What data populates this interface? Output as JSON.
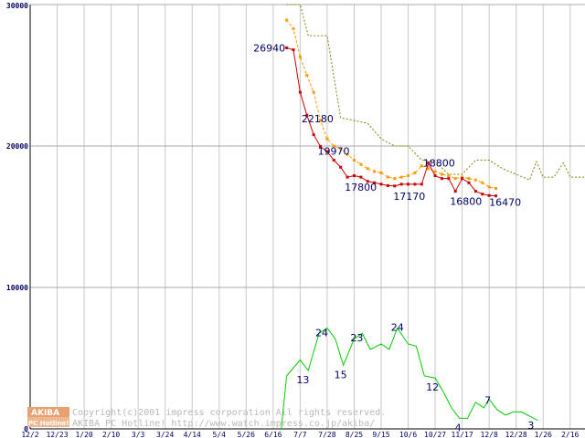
{
  "chart_data": {
    "type": "line",
    "ylim": [
      0,
      30000
    ],
    "y2lim": [
      0,
      40
    ],
    "yticks": [
      "30000",
      "20000",
      "10000",
      "0"
    ],
    "xlabels": [
      "12/2",
      "12/23",
      "1/20",
      "2/10",
      "3/3",
      "3/24",
      "4/14",
      "5/4",
      "5/26",
      "6/16",
      "7/7",
      "7/28",
      "8/25",
      "9/15",
      "10/6",
      "10/27",
      "11/17",
      "12/8",
      "12/28",
      "1/26",
      "2/16"
    ],
    "grid": true,
    "legend": "none",
    "series": [
      {
        "id": "price-max",
        "color": "#808000",
        "style": "dotted",
        "markers": false,
        "points": [
          [
            9.5,
            30000
          ],
          [
            10,
            30000
          ],
          [
            10.3,
            27800
          ],
          [
            11,
            27800
          ],
          [
            11.5,
            22000
          ],
          [
            12,
            21800
          ],
          [
            12.5,
            21600
          ],
          [
            13,
            20500
          ],
          [
            13.5,
            20000
          ],
          [
            14,
            20000
          ],
          [
            14.5,
            19000
          ],
          [
            15,
            18900
          ],
          [
            15.5,
            18000
          ],
          [
            16,
            18000
          ],
          [
            16.5,
            19000
          ],
          [
            17,
            19000
          ],
          [
            17.5,
            18400
          ],
          [
            18,
            18000
          ],
          [
            18.5,
            17600
          ],
          [
            18.75,
            18900
          ],
          [
            19,
            17800
          ],
          [
            19.4,
            17800
          ],
          [
            19.75,
            18800
          ],
          [
            20,
            17800
          ],
          [
            21,
            17800
          ]
        ]
      },
      {
        "id": "price-avg",
        "color": "#ff9900",
        "style": "dashed",
        "markers": true,
        "points": [
          [
            9.5,
            28900
          ],
          [
            9.75,
            28300
          ],
          [
            10,
            26300
          ],
          [
            10.25,
            25000
          ],
          [
            10.5,
            23800
          ],
          [
            10.75,
            21800
          ],
          [
            11,
            20500
          ],
          [
            11.25,
            20000
          ],
          [
            11.5,
            19800
          ],
          [
            11.75,
            19400
          ],
          [
            12,
            19000
          ],
          [
            12.25,
            18700
          ],
          [
            12.5,
            18400
          ],
          [
            12.75,
            18200
          ],
          [
            13,
            18100
          ],
          [
            13.25,
            17800
          ],
          [
            13.5,
            17700
          ],
          [
            13.75,
            17800
          ],
          [
            14,
            17900
          ],
          [
            14.25,
            18100
          ],
          [
            14.5,
            18600
          ],
          [
            14.75,
            18400
          ],
          [
            15,
            18200
          ],
          [
            15.25,
            18000
          ],
          [
            15.5,
            17900
          ],
          [
            15.75,
            17700
          ],
          [
            16,
            17800
          ],
          [
            16.25,
            17700
          ],
          [
            16.5,
            17600
          ],
          [
            16.75,
            17400
          ],
          [
            17,
            17100
          ],
          [
            17.25,
            17000
          ]
        ]
      },
      {
        "id": "price-min",
        "color": "#cc0000",
        "style": "solid",
        "markers": true,
        "points": [
          [
            9.5,
            26940
          ],
          [
            9.75,
            26800
          ],
          [
            10,
            23800
          ],
          [
            10.25,
            22180
          ],
          [
            10.5,
            20800
          ],
          [
            10.75,
            19970
          ],
          [
            11,
            19600
          ],
          [
            11.25,
            19000
          ],
          [
            11.5,
            18500
          ],
          [
            11.75,
            17800
          ],
          [
            12,
            17900
          ],
          [
            12.25,
            17800
          ],
          [
            12.5,
            17500
          ],
          [
            12.75,
            17400
          ],
          [
            13,
            17300
          ],
          [
            13.25,
            17200
          ],
          [
            13.5,
            17170
          ],
          [
            13.75,
            17300
          ],
          [
            14,
            17300
          ],
          [
            14.25,
            17300
          ],
          [
            14.5,
            17300
          ],
          [
            14.75,
            18800
          ],
          [
            15,
            17900
          ],
          [
            15.25,
            17700
          ],
          [
            15.5,
            17700
          ],
          [
            15.75,
            16800
          ],
          [
            16,
            17700
          ],
          [
            16.25,
            17400
          ],
          [
            16.5,
            16800
          ],
          [
            16.75,
            16600
          ],
          [
            17,
            16500
          ],
          [
            17.25,
            16470
          ]
        ]
      },
      {
        "id": "shop-count",
        "color": "#00cc00",
        "style": "solid",
        "markers": false,
        "axis": "right",
        "points": [
          [
            9.3,
            0
          ],
          [
            9.5,
            5
          ],
          [
            10,
            6.5
          ],
          [
            10.3,
            5.5
          ],
          [
            10.7,
            9
          ],
          [
            11,
            9.5
          ],
          [
            11.3,
            8.5
          ],
          [
            11.6,
            6
          ],
          [
            12,
            8.5
          ],
          [
            12.3,
            9
          ],
          [
            12.6,
            7.5
          ],
          [
            13,
            8
          ],
          [
            13.3,
            7.5
          ],
          [
            13.6,
            9.5
          ],
          [
            14,
            8
          ],
          [
            14.3,
            7.8
          ],
          [
            14.6,
            5
          ],
          [
            15,
            4.8
          ],
          [
            15.3,
            3.5
          ],
          [
            15.6,
            2
          ],
          [
            15.9,
            1
          ],
          [
            16.2,
            1
          ],
          [
            16.5,
            2.5
          ],
          [
            16.8,
            2
          ],
          [
            17,
            2.8
          ],
          [
            17.3,
            1.8
          ],
          [
            17.6,
            1.3
          ],
          [
            17.9,
            1.6
          ],
          [
            18.2,
            1.6
          ],
          [
            18.5,
            1.2
          ],
          [
            18.8,
            0.8
          ]
        ]
      }
    ],
    "data_labels": [
      {
        "text": "26940",
        "x": 9.45,
        "y": 26940,
        "anchor": "end",
        "dy": 4
      },
      {
        "text": "22180",
        "x": 10.05,
        "y": 22180,
        "anchor": "start",
        "dy": 8
      },
      {
        "text": "19970",
        "x": 10.65,
        "y": 19970,
        "anchor": "start",
        "dy": 9
      },
      {
        "text": "17800",
        "x": 11.65,
        "y": 17800,
        "anchor": "start",
        "dy": 15
      },
      {
        "text": "17170",
        "x": 13.45,
        "y": 17170,
        "anchor": "start",
        "dy": 15
      },
      {
        "text": "18800",
        "x": 14.55,
        "y": 18800,
        "anchor": "start",
        "dy": 4
      },
      {
        "text": "16800",
        "x": 15.55,
        "y": 16800,
        "anchor": "start",
        "dy": 15
      },
      {
        "text": "16470",
        "x": 17.0,
        "y": 16470,
        "anchor": "start",
        "dy": 11
      }
    ],
    "count_labels": [
      {
        "text": "13",
        "x": 10.1,
        "y": 5.5,
        "dy": 14
      },
      {
        "text": "24",
        "x": 10.8,
        "y": 9,
        "dy": 3
      },
      {
        "text": "15",
        "x": 11.5,
        "y": 6,
        "dy": 14
      },
      {
        "text": "23",
        "x": 12.1,
        "y": 8.5,
        "dy": 3
      },
      {
        "text": "24",
        "x": 13.6,
        "y": 9.5,
        "dy": 3
      },
      {
        "text": "12",
        "x": 14.9,
        "y": 4.8,
        "dy": 14
      },
      {
        "text": "4",
        "x": 15.85,
        "y": 1,
        "dy": 14
      },
      {
        "text": "7",
        "x": 16.95,
        "y": 2.8,
        "dy": 5
      },
      {
        "text": "3",
        "x": 18.55,
        "y": 1.2,
        "dy": 14
      }
    ]
  },
  "footer": {
    "logo_top": "AKIBA",
    "logo_bottom": "PC Hotline!",
    "copyright": "Copyright(c)2001 impress corporation All rights reserved.",
    "site": "AKIBA PC Hotline! http://www.watch.impress.co.jp/akiba/"
  }
}
